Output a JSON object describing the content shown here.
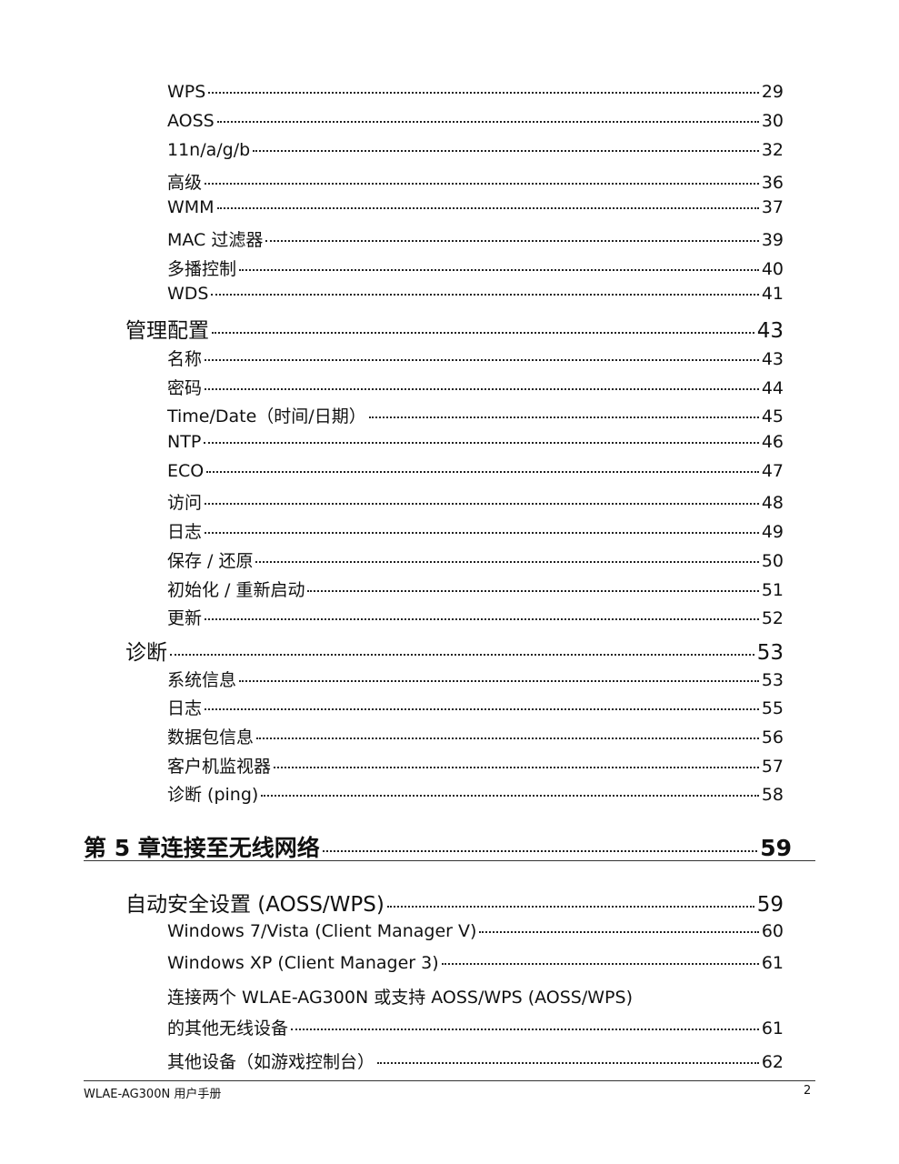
{
  "continued_items": [
    {
      "title": "WPS",
      "page": 29
    },
    {
      "title": "AOSS",
      "page": 30
    },
    {
      "title": "11n/a/g/b",
      "page": 32
    },
    {
      "title": "高级",
      "page": 36
    },
    {
      "title": "WMM",
      "page": 37
    },
    {
      "title": "MAC 过滤器",
      "page": 39
    },
    {
      "title": "多播控制",
      "page": 40
    },
    {
      "title": "WDS",
      "page": 41
    }
  ],
  "sections": [
    {
      "title": "管理配置",
      "page": 43,
      "items": [
        {
          "title": "名称",
          "page": 43
        },
        {
          "title": "密码",
          "page": 44
        },
        {
          "title": "Time/Date（时间/日期）",
          "page": 45
        },
        {
          "title": "NTP",
          "page": 46
        },
        {
          "title": "ECO",
          "page": 47
        },
        {
          "title": "访问",
          "page": 48
        },
        {
          "title": "日志",
          "page": 49
        },
        {
          "title": "保存 / 还原",
          "page": 50
        },
        {
          "title": "初始化 / 重新启动",
          "page": 51
        },
        {
          "title": "更新",
          "page": 52
        }
      ]
    },
    {
      "title": "诊断",
      "page": 53,
      "items": [
        {
          "title": "系统信息",
          "page": 53
        },
        {
          "title": "日志",
          "page": 55
        },
        {
          "title": "数据包信息",
          "page": 56
        },
        {
          "title": "客户机监视器",
          "page": 57
        },
        {
          "title": "诊断 (ping)",
          "page": 58
        }
      ]
    }
  ],
  "chapter": {
    "title": "第 5 章连接至无线网络",
    "page": 59,
    "sections": [
      {
        "title": "自动安全设置 (AOSS/WPS)",
        "page": 59,
        "items": [
          {
            "title": "Windows 7/Vista (Client Manager V)",
            "page": 60
          },
          {
            "title": "Windows XP (Client Manager 3)",
            "page": 61
          },
          {
            "title_lines": [
              "连接两个 WLAE-AG300N 或支持 AOSS/WPS (AOSS/WPS)",
              "的其他无线设备"
            ],
            "page": 61
          },
          {
            "title": "其他设备（如游戏控制台）",
            "page": 62
          }
        ]
      }
    ]
  },
  "footer": {
    "manual": "WLAE-AG300N 用户手册",
    "page_number": 2
  }
}
